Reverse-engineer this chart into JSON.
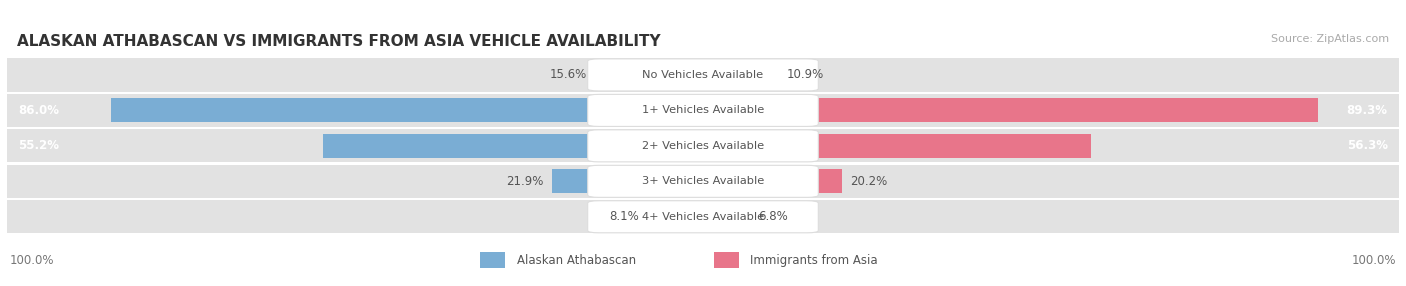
{
  "title": "ALASKAN ATHABASCAN VS IMMIGRANTS FROM ASIA VEHICLE AVAILABILITY",
  "source": "Source: ZipAtlas.com",
  "categories": [
    "No Vehicles Available",
    "1+ Vehicles Available",
    "2+ Vehicles Available",
    "3+ Vehicles Available",
    "4+ Vehicles Available"
  ],
  "left_values": [
    15.6,
    86.0,
    55.2,
    21.9,
    8.1
  ],
  "right_values": [
    10.9,
    89.3,
    56.3,
    20.2,
    6.8
  ],
  "left_label": "Alaskan Athabascan",
  "right_label": "Immigrants from Asia",
  "left_color": "#7aadd4",
  "right_color": "#e8758a",
  "bar_bg_color": "#e2e2e2",
  "separator_color": "#ffffff",
  "label_color": "#555555",
  "title_color": "#333333",
  "footer_label_color": "#777777",
  "source_color": "#aaaaaa",
  "max_value": 100.0,
  "center_label_box_color": "#ffffff",
  "center_label_text_color": "#555555",
  "value_text_color_outside": "#555555",
  "value_text_color_inside": "#ffffff"
}
